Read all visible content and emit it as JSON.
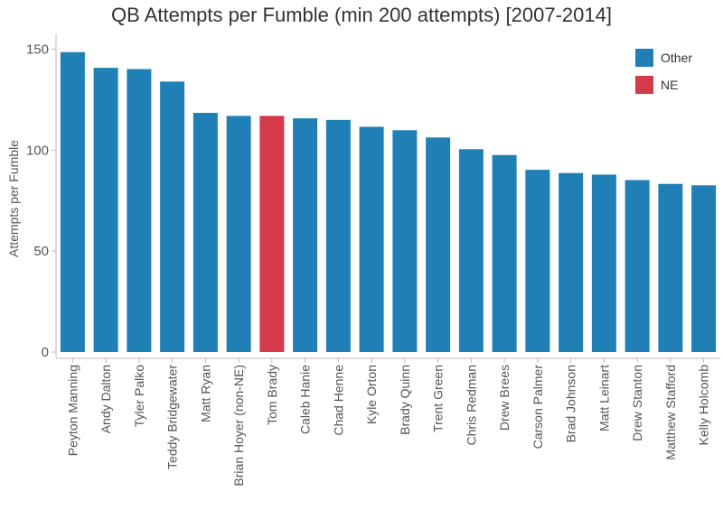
{
  "chart_data": {
    "type": "bar",
    "title": "QB Attempts per Fumble (min 200 attempts) [2007-2014]",
    "xlabel": "",
    "ylabel": "Attempts per Fumble",
    "ylim": [
      0,
      155
    ],
    "yticks": [
      "0",
      "50",
      "100",
      "150"
    ],
    "grid": false,
    "legend_position": "top-right",
    "categories": [
      "Peyton Manning",
      "Andy Dalton",
      "Tyler Palko",
      "Teddy Bridgewater",
      "Matt Ryan",
      "Brian Hoyer (non-NE)",
      "Tom Brady",
      "Caleb Hanie",
      "Chad Henne",
      "Kyle Orton",
      "Brady Quinn",
      "Trent Green",
      "Chris Redman",
      "Drew Brees",
      "Carson Palmer",
      "Brad Johnson",
      "Matt Leinart",
      "Drew Stanton",
      "Matthew Stafford",
      "Kelly Holcomb"
    ],
    "values": [
      148.6,
      140.8,
      140.2,
      134.0,
      118.5,
      117.0,
      117.0,
      115.8,
      115.0,
      111.6,
      109.9,
      106.3,
      100.5,
      97.6,
      90.3,
      88.7,
      87.9,
      85.2,
      83.3,
      82.6
    ],
    "groups": [
      "Other",
      "Other",
      "Other",
      "Other",
      "Other",
      "Other",
      "NE",
      "Other",
      "Other",
      "Other",
      "Other",
      "Other",
      "Other",
      "Other",
      "Other",
      "Other",
      "Other",
      "Other",
      "Other",
      "Other"
    ],
    "legend": [
      {
        "name": "Other",
        "color": "#2080b6"
      },
      {
        "name": "NE",
        "color": "#d5394a"
      }
    ]
  }
}
